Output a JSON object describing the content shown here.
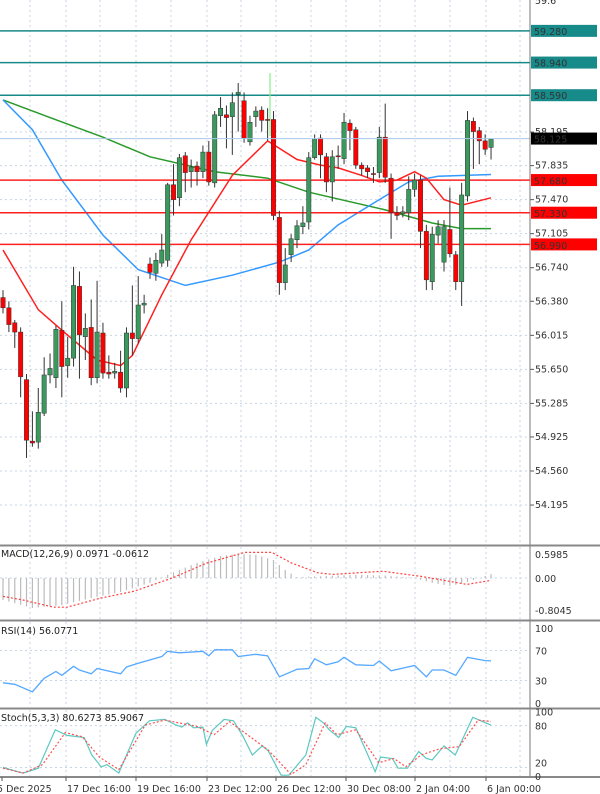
{
  "chart_data": {
    "type": "candlestick",
    "timeframe_interval_hours": 4,
    "colors": {
      "up": "#3a9a5e",
      "down": "#ff0000",
      "wick": "#333333",
      "ma_fast": "#ff2020",
      "ma_mid": "#3399ff",
      "ma_slow": "#2a9a2a",
      "resistance": "#178a8a",
      "support": "#ff2020",
      "bid": "#aac8e8"
    },
    "price_axis": {
      "ticks": [
        "58.195",
        "57.835",
        "57.470",
        "57.105",
        "56.740",
        "56.380",
        "56.015",
        "55.650",
        "55.285",
        "54.925",
        "54.560",
        "54.195"
      ],
      "bid": "58.125"
    },
    "levels": {
      "resistance": [
        "59.280",
        "58.940",
        "58.590"
      ],
      "support": [
        "57.680",
        "57.330",
        "56.990"
      ]
    },
    "time_axis": [
      "5 Dec 2025",
      "17 Dec 16:00",
      "19 Dec 16:00",
      "23 Dec 12:00",
      "26 Dec 12:00",
      "30 Dec 08:00",
      "2 Jan 04:00",
      "6 Jan 00:00"
    ],
    "candles_ohlc": [
      [
        56.42,
        56.5,
        56.25,
        56.31
      ],
      [
        56.31,
        56.38,
        56.05,
        56.13
      ],
      [
        56.15,
        56.18,
        55.88,
        56.05
      ],
      [
        56.05,
        56.1,
        55.35,
        55.57
      ],
      [
        55.54,
        55.6,
        54.7,
        54.89
      ],
      [
        54.88,
        55.2,
        54.82,
        54.86
      ],
      [
        54.87,
        55.45,
        54.8,
        55.19
      ],
      [
        55.18,
        55.78,
        55.15,
        55.59
      ],
      [
        55.59,
        55.82,
        55.5,
        55.66
      ],
      [
        55.56,
        56.12,
        55.45,
        56.08
      ],
      [
        56.07,
        56.38,
        55.35,
        55.68
      ],
      [
        55.69,
        56.0,
        55.56,
        55.77
      ],
      [
        55.77,
        56.75,
        55.68,
        56.55
      ],
      [
        56.54,
        56.7,
        55.55,
        56.02
      ],
      [
        56.0,
        56.25,
        55.75,
        56.09
      ],
      [
        56.1,
        56.4,
        55.48,
        55.56
      ],
      [
        55.56,
        56.6,
        55.5,
        56.05
      ],
      [
        56.04,
        56.15,
        55.55,
        55.61
      ],
      [
        55.62,
        55.8,
        55.55,
        55.6
      ],
      [
        55.61,
        55.72,
        55.55,
        55.63
      ],
      [
        55.62,
        55.85,
        55.4,
        55.45
      ],
      [
        55.45,
        56.1,
        55.35,
        56.04
      ],
      [
        56.04,
        56.55,
        55.8,
        55.98
      ],
      [
        55.98,
        56.65,
        55.93,
        56.34
      ],
      [
        56.34,
        56.45,
        56.25,
        56.36
      ],
      [
        56.78,
        56.85,
        56.62,
        56.69
      ],
      [
        56.68,
        56.9,
        56.6,
        56.82
      ],
      [
        56.79,
        57.1,
        56.75,
        56.93
      ],
      [
        56.82,
        57.65,
        56.75,
        57.63
      ],
      [
        57.63,
        57.85,
        57.3,
        57.47
      ],
      [
        57.49,
        57.96,
        57.4,
        57.92
      ],
      [
        57.94,
        57.98,
        57.55,
        57.76
      ],
      [
        57.77,
        57.9,
        57.6,
        57.82
      ],
      [
        57.83,
        57.88,
        57.62,
        57.77
      ],
      [
        57.77,
        58.05,
        57.7,
        57.98
      ],
      [
        57.98,
        58.1,
        57.62,
        57.66
      ],
      [
        57.65,
        58.42,
        57.6,
        58.38
      ],
      [
        58.37,
        58.57,
        58.25,
        58.45
      ],
      [
        58.38,
        58.48,
        58.02,
        58.35
      ],
      [
        58.36,
        58.62,
        57.95,
        58.51
      ],
      [
        58.6,
        58.72,
        58.2,
        58.62
      ],
      [
        58.53,
        58.62,
        58.08,
        58.13
      ],
      [
        58.09,
        58.37,
        58.05,
        58.3
      ],
      [
        58.36,
        58.47,
        58.25,
        58.42
      ],
      [
        58.43,
        58.47,
        58.2,
        58.32
      ],
      [
        58.33,
        58.45,
        58.1,
        58.32
      ],
      [
        58.33,
        58.42,
        57.25,
        57.3
      ],
      [
        57.28,
        57.35,
        56.45,
        56.58
      ],
      [
        56.58,
        56.95,
        56.5,
        56.77
      ],
      [
        56.88,
        57.1,
        56.8,
        57.05
      ],
      [
        57.04,
        57.25,
        56.95,
        57.19
      ],
      [
        57.18,
        57.4,
        57.1,
        57.22
      ],
      [
        57.23,
        57.98,
        57.15,
        57.92
      ],
      [
        57.92,
        58.17,
        57.9,
        58.12
      ],
      [
        58.13,
        58.17,
        57.7,
        57.95
      ],
      [
        57.93,
        57.97,
        57.55,
        57.66
      ],
      [
        57.66,
        58.0,
        57.45,
        57.93
      ],
      [
        57.94,
        58.05,
        57.8,
        57.93
      ],
      [
        57.91,
        58.4,
        57.85,
        58.3
      ],
      [
        58.29,
        58.33,
        58.0,
        58.21
      ],
      [
        58.22,
        58.25,
        57.8,
        57.84
      ],
      [
        57.84,
        57.87,
        57.73,
        57.8
      ],
      [
        57.81,
        57.84,
        57.7,
        57.77
      ],
      [
        57.75,
        57.82,
        57.65,
        57.74
      ],
      [
        57.76,
        58.25,
        57.7,
        58.14
      ],
      [
        58.14,
        58.5,
        57.65,
        57.71
      ],
      [
        57.7,
        57.75,
        57.05,
        57.33
      ],
      [
        57.33,
        57.4,
        57.25,
        57.3
      ],
      [
        57.32,
        57.4,
        57.28,
        57.34
      ],
      [
        57.33,
        57.72,
        57.25,
        57.58
      ],
      [
        57.58,
        57.75,
        57.5,
        57.68
      ],
      [
        57.68,
        57.73,
        56.95,
        57.13
      ],
      [
        57.13,
        57.2,
        56.5,
        56.61
      ],
      [
        56.59,
        57.18,
        56.5,
        57.1
      ],
      [
        57.09,
        57.25,
        57.0,
        57.18
      ],
      [
        56.8,
        57.25,
        56.7,
        57.18
      ],
      [
        57.15,
        57.6,
        56.85,
        56.89
      ],
      [
        56.88,
        56.92,
        56.5,
        56.59
      ],
      [
        56.59,
        57.65,
        56.33,
        57.52
      ],
      [
        57.51,
        58.42,
        57.45,
        58.32
      ],
      [
        58.31,
        58.35,
        57.8,
        58.2
      ],
      [
        58.21,
        58.25,
        57.85,
        58.1
      ],
      [
        58.1,
        58.17,
        57.95,
        58.01
      ],
      [
        58.03,
        58.13,
        57.9,
        58.12
      ]
    ],
    "moving_averages": {
      "fast": [
        [
          0,
          56.93
        ],
        [
          6,
          56.29
        ],
        [
          10,
          56.07
        ],
        [
          16,
          55.75
        ],
        [
          20,
          55.69
        ],
        [
          22,
          55.8
        ],
        [
          27,
          56.45
        ],
        [
          32,
          57.04
        ],
        [
          39,
          57.73
        ],
        [
          45,
          58.1
        ],
        [
          46,
          58.06
        ],
        [
          50,
          57.9
        ],
        [
          54,
          57.84
        ],
        [
          57,
          57.81
        ],
        [
          61,
          57.73
        ],
        [
          64,
          57.66
        ],
        [
          67,
          57.68
        ],
        [
          70,
          57.77
        ],
        [
          72,
          57.7
        ],
        [
          75,
          57.47
        ],
        [
          78,
          57.41
        ],
        [
          83,
          57.49
        ]
      ],
      "mid": [
        [
          0,
          58.54
        ],
        [
          5,
          58.22
        ],
        [
          10,
          57.68
        ],
        [
          17,
          57.09
        ],
        [
          23,
          56.72
        ],
        [
          31,
          56.55
        ],
        [
          39,
          56.66
        ],
        [
          47,
          56.8
        ],
        [
          52,
          56.93
        ],
        [
          57,
          57.2
        ],
        [
          64,
          57.47
        ],
        [
          69,
          57.66
        ],
        [
          74,
          57.72
        ],
        [
          83,
          57.74
        ]
      ],
      "slow": [
        [
          0,
          58.54
        ],
        [
          8,
          58.35
        ],
        [
          17,
          58.14
        ],
        [
          25,
          57.93
        ],
        [
          36,
          57.77
        ],
        [
          45,
          57.7
        ],
        [
          52,
          57.55
        ],
        [
          65,
          57.36
        ],
        [
          73,
          57.22
        ],
        [
          78,
          57.16
        ],
        [
          83,
          57.16
        ]
      ]
    },
    "macd": {
      "label": "MACD(12,26,9) 0.0971 -0.0612",
      "ticks": [
        "0.5985",
        "0.00",
        "-0.8045"
      ],
      "histogram": [
        [
          0,
          -0.55
        ],
        [
          5,
          -0.75
        ],
        [
          10,
          -0.68
        ],
        [
          15,
          -0.5
        ],
        [
          20,
          -0.35
        ],
        [
          25,
          -0.12
        ],
        [
          28,
          0.08
        ],
        [
          30,
          0.2
        ],
        [
          33,
          0.38
        ],
        [
          37,
          0.55
        ],
        [
          40,
          0.6
        ],
        [
          43,
          0.58
        ],
        [
          46,
          0.45
        ],
        [
          48,
          0.2
        ],
        [
          50,
          0.02
        ],
        [
          55,
          0.05
        ],
        [
          60,
          0.08
        ],
        [
          65,
          0.06
        ],
        [
          70,
          0.0
        ],
        [
          73,
          -0.12
        ],
        [
          76,
          -0.2
        ],
        [
          79,
          -0.1
        ],
        [
          82,
          0.05
        ],
        [
          83,
          0.0971
        ]
      ],
      "signal": [
        [
          0,
          -0.46
        ],
        [
          3.4,
          -0.55
        ],
        [
          8.6,
          -0.73
        ],
        [
          10.9,
          -0.73
        ],
        [
          16.4,
          -0.51
        ],
        [
          22.3,
          -0.33
        ],
        [
          28.8,
          0.0
        ],
        [
          34.6,
          0.37
        ],
        [
          41.1,
          0.64
        ],
        [
          45.7,
          0.64
        ],
        [
          49,
          0.38
        ],
        [
          53.5,
          0.13
        ],
        [
          56.1,
          0.09
        ],
        [
          64.6,
          0.17
        ],
        [
          71.1,
          0.04
        ],
        [
          78.9,
          -0.16
        ],
        [
          83,
          -0.0612
        ]
      ]
    },
    "rsi": {
      "label": "RSI(14) 56.0771",
      "ticks": [
        "100",
        "70",
        "30",
        "0"
      ],
      "values": [
        [
          0,
          27
        ],
        [
          2,
          25
        ],
        [
          5,
          15
        ],
        [
          7,
          33
        ],
        [
          9,
          42
        ],
        [
          10,
          37
        ],
        [
          12,
          49
        ],
        [
          13,
          44
        ],
        [
          15,
          39
        ],
        [
          16,
          46
        ],
        [
          20,
          39
        ],
        [
          21,
          48
        ],
        [
          23,
          53
        ],
        [
          27,
          62
        ],
        [
          28,
          69
        ],
        [
          30,
          67
        ],
        [
          34,
          69
        ],
        [
          35,
          63
        ],
        [
          36,
          71
        ],
        [
          39,
          71
        ],
        [
          40,
          62
        ],
        [
          43,
          65
        ],
        [
          45,
          63
        ],
        [
          47,
          35
        ],
        [
          50,
          45
        ],
        [
          52,
          46
        ],
        [
          53,
          59
        ],
        [
          55,
          51
        ],
        [
          57,
          55
        ],
        [
          58,
          61
        ],
        [
          60,
          51
        ],
        [
          63,
          50
        ],
        [
          64,
          56
        ],
        [
          66,
          43
        ],
        [
          70,
          50
        ],
        [
          72,
          35
        ],
        [
          73,
          44
        ],
        [
          75,
          44
        ],
        [
          77,
          37
        ],
        [
          79,
          61
        ],
        [
          82,
          56.5
        ],
        [
          83,
          56.08
        ]
      ]
    },
    "stoch": {
      "label": "Stoch(5,3,3) 80.6273 85.9067",
      "ticks": [
        "100",
        "80",
        "20",
        "0"
      ],
      "k": [
        [
          0,
          20
        ],
        [
          3.4,
          12
        ],
        [
          6,
          19
        ],
        [
          8.9,
          74
        ],
        [
          10.9,
          66
        ],
        [
          13.8,
          63
        ],
        [
          15.1,
          38
        ],
        [
          16.7,
          21
        ],
        [
          17.7,
          24
        ],
        [
          19.7,
          12
        ],
        [
          22.6,
          69
        ],
        [
          24.9,
          87
        ],
        [
          27.5,
          89
        ],
        [
          29.4,
          81
        ],
        [
          30.4,
          78
        ],
        [
          31.4,
          84
        ],
        [
          32.4,
          77
        ],
        [
          34,
          78
        ],
        [
          34.6,
          53
        ],
        [
          35.6,
          73
        ],
        [
          37.6,
          89
        ],
        [
          39.2,
          87
        ],
        [
          40.8,
          65
        ],
        [
          42.4,
          38
        ],
        [
          44.1,
          51
        ],
        [
          45.1,
          44
        ],
        [
          47.3,
          9
        ],
        [
          48.6,
          9
        ],
        [
          51.5,
          38
        ],
        [
          53.2,
          92
        ],
        [
          54.5,
          84
        ],
        [
          55.5,
          74
        ],
        [
          57.1,
          63
        ],
        [
          58.4,
          79
        ],
        [
          60,
          77
        ],
        [
          63.3,
          14
        ],
        [
          64.2,
          35
        ],
        [
          66.2,
          33
        ],
        [
          67.2,
          19
        ],
        [
          68.8,
          19
        ],
        [
          70.7,
          43
        ],
        [
          72,
          33
        ],
        [
          73,
          31
        ],
        [
          75,
          51
        ],
        [
          76.9,
          38
        ],
        [
          79.9,
          92
        ],
        [
          83,
          80.63
        ]
      ],
      "d": [
        [
          0,
          19
        ],
        [
          3.4,
          12
        ],
        [
          6.7,
          24
        ],
        [
          10.6,
          70
        ],
        [
          13.5,
          64
        ],
        [
          16.4,
          35
        ],
        [
          19.7,
          17
        ],
        [
          24.2,
          81
        ],
        [
          27.5,
          88
        ],
        [
          33,
          79
        ],
        [
          35.9,
          67
        ],
        [
          38.5,
          86
        ],
        [
          45.1,
          45
        ],
        [
          49,
          10
        ],
        [
          51.5,
          24
        ],
        [
          54.8,
          84
        ],
        [
          56.8,
          67
        ],
        [
          60,
          74
        ],
        [
          63.9,
          27
        ],
        [
          66.5,
          33
        ],
        [
          68.5,
          21
        ],
        [
          71.1,
          38
        ],
        [
          74.3,
          47
        ],
        [
          77.6,
          50
        ],
        [
          80.8,
          88
        ],
        [
          83,
          85.91
        ]
      ]
    }
  }
}
